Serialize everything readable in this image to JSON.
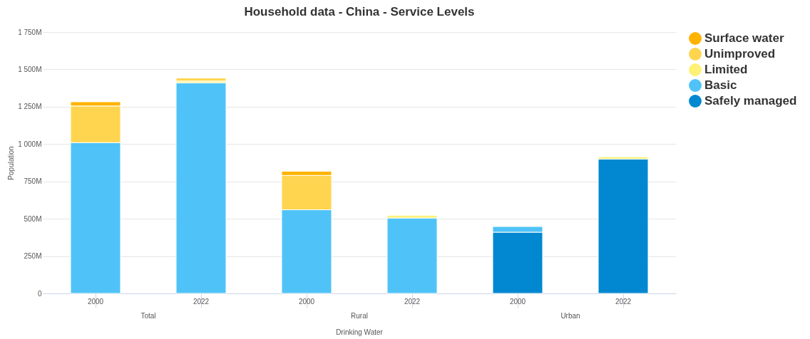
{
  "chart_data": {
    "type": "bar",
    "title": "Household data - China - Service Levels",
    "ylabel": "Population",
    "stacked": true,
    "categories": [
      "2000",
      "2022",
      "2000",
      "2022",
      "2000",
      "2022"
    ],
    "series": [
      {
        "name": "Safely managed",
        "color": "#0288d1",
        "values": [
          null,
          null,
          null,
          null,
          410,
          900
        ]
      },
      {
        "name": "Basic",
        "color": "#4fc3f7",
        "values": [
          1010,
          1410,
          560,
          505,
          38,
          null
        ]
      },
      {
        "name": "Limited",
        "color": "#fff176",
        "values": [
          null,
          12,
          null,
          18,
          null,
          15
        ]
      },
      {
        "name": "Unimproved",
        "color": "#ffd54f",
        "values": [
          245,
          20,
          230,
          null,
          null,
          null
        ]
      },
      {
        "name": "Surface water",
        "color": "#ffb300",
        "values": [
          28,
          null,
          28,
          null,
          null,
          null
        ]
      }
    ],
    "ylim": [
      0,
      1750
    ],
    "yticks": [
      0,
      {
        "value": 250,
        "label": "250M"
      },
      {
        "value": 500,
        "label": "500M"
      },
      {
        "value": 750,
        "label": "750M"
      },
      {
        "value": 1000,
        "label": "1 000M"
      },
      {
        "value": 1250,
        "label": "1 250M"
      },
      {
        "value": 1500,
        "label": "1 500M"
      },
      {
        "value": 1750,
        "label": "1 750M"
      }
    ],
    "grid": "y",
    "legend": "top right",
    "annotations": [
      "Total",
      "Rural",
      "Urban",
      "Drinking Water"
    ]
  }
}
